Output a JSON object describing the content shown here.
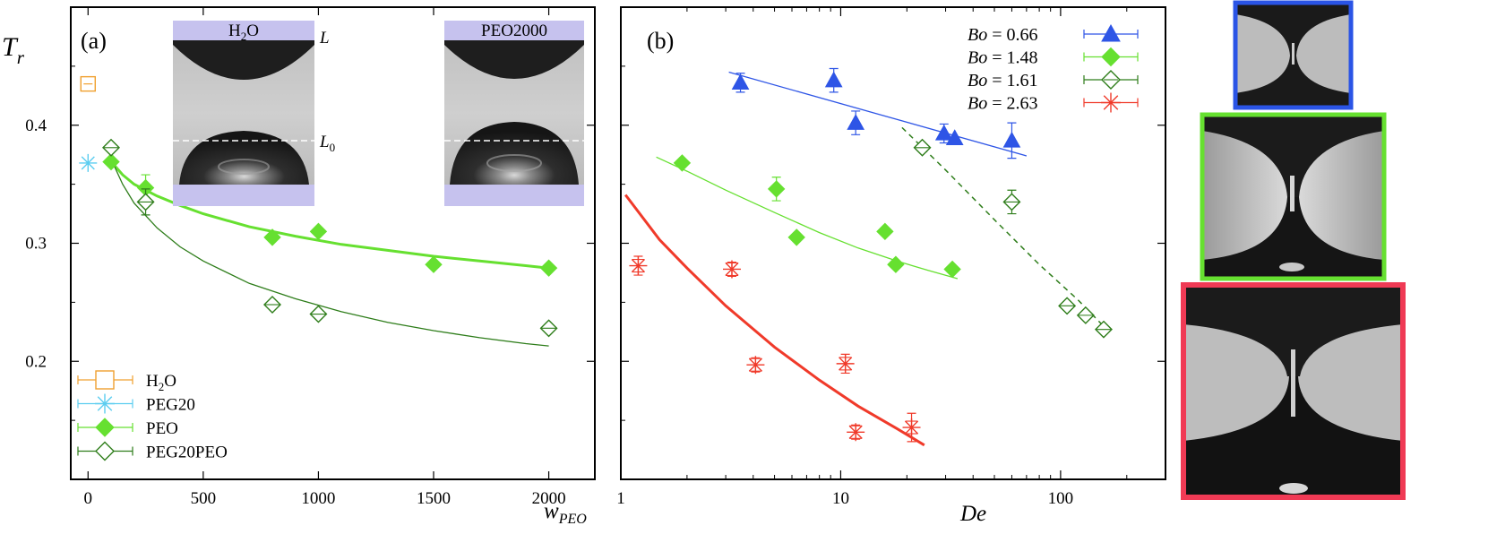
{
  "chart_data": [
    {
      "type": "scatter",
      "panel_label": "(a)",
      "ylabel": "T",
      "ylabel_sub": "r",
      "xlabel": "w",
      "xlabel_sub": "PEO",
      "xlim": [
        -75,
        2200
      ],
      "ylim": [
        0.1,
        0.5
      ],
      "xticks": [
        0,
        500,
        1000,
        1500,
        2000
      ],
      "xtick_labels": [
        "0",
        "500",
        "1000",
        "1500",
        "2000"
      ],
      "yticks": [
        0.2,
        0.3,
        0.4
      ],
      "ytick_labels": [
        "0.2",
        "0.3",
        "0.4"
      ],
      "legend_position": "bottom-left",
      "series": [
        {
          "name": "H2O",
          "label_main": "H",
          "label_sub": "2",
          "label_tail": "O",
          "color": "#f0a030",
          "marker": "open-square",
          "points": [
            {
              "x": 0,
              "y": 0.435,
              "err": 0.005
            }
          ]
        },
        {
          "name": "PEG20",
          "label_main": "PEG20",
          "color": "#5ccdf0",
          "marker": "star",
          "points": [
            {
              "x": 0,
              "y": 0.368,
              "err": 0.0
            }
          ]
        },
        {
          "name": "PEO",
          "label_main": "PEO",
          "color": "#66e030",
          "marker": "filled-diamond",
          "points": [
            {
              "x": 100,
              "y": 0.369,
              "err": 0.0
            },
            {
              "x": 250,
              "y": 0.347,
              "err": 0.011
            },
            {
              "x": 800,
              "y": 0.305,
              "err": 0.0
            },
            {
              "x": 1000,
              "y": 0.31,
              "err": 0.0
            },
            {
              "x": 1500,
              "y": 0.282,
              "err": 0.0
            },
            {
              "x": 2000,
              "y": 0.279,
              "err": 0.0
            }
          ]
        },
        {
          "name": "PEG20PEO",
          "label_main": "PEG20PEO",
          "color": "#2e7d1a",
          "marker": "open-diamond",
          "points": [
            {
              "x": 100,
              "y": 0.381,
              "err": 0.0
            },
            {
              "x": 250,
              "y": 0.335,
              "err": 0.011
            },
            {
              "x": 800,
              "y": 0.248,
              "err": 0.0
            },
            {
              "x": 1000,
              "y": 0.24,
              "err": 0.0
            },
            {
              "x": 2000,
              "y": 0.228,
              "err": 0.0
            }
          ]
        }
      ],
      "fits": [
        {
          "name": "PEO fit",
          "color": "#66e030",
          "width": 3,
          "dash": false,
          "points": [
            [
              110,
              0.367
            ],
            [
              150,
              0.358
            ],
            [
              200,
              0.35
            ],
            [
              300,
              0.34
            ],
            [
              400,
              0.332
            ],
            [
              500,
              0.325
            ],
            [
              700,
              0.314
            ],
            [
              900,
              0.306
            ],
            [
              1100,
              0.299
            ],
            [
              1300,
              0.294
            ],
            [
              1500,
              0.289
            ],
            [
              1700,
              0.285
            ],
            [
              1900,
              0.281
            ],
            [
              2000,
              0.279
            ]
          ]
        },
        {
          "name": "PEG20PEO fit",
          "color": "#2e7d1a",
          "width": 1.3,
          "dash": false,
          "points": [
            [
              110,
              0.367
            ],
            [
              150,
              0.35
            ],
            [
              200,
              0.334
            ],
            [
              300,
              0.313
            ],
            [
              400,
              0.297
            ],
            [
              500,
              0.285
            ],
            [
              700,
              0.266
            ],
            [
              900,
              0.253
            ],
            [
              1100,
              0.242
            ],
            [
              1300,
              0.233
            ],
            [
              1500,
              0.226
            ],
            [
              1700,
              0.22
            ],
            [
              1900,
              0.215
            ],
            [
              2000,
              0.213
            ]
          ]
        }
      ],
      "insets": [
        {
          "label_main": "H",
          "label_sub": "2",
          "label_tail": "O",
          "annotation_top": "L",
          "annotation_mid": "L",
          "annotation_mid_sub": "0"
        },
        {
          "label_main": "PEO2000"
        }
      ]
    },
    {
      "type": "scatter",
      "panel_label": "(b)",
      "xlabel": "De",
      "xscale": "log",
      "xlim": [
        1,
        300
      ],
      "ylim": [
        0.1,
        0.5
      ],
      "xticks": [
        1,
        10,
        100
      ],
      "xtick_labels": [
        "1",
        "10",
        "100"
      ],
      "yticks": [
        0.2,
        0.3,
        0.4
      ],
      "legend_position": "top-right",
      "legend_prefix": "Bo = ",
      "series": [
        {
          "name": "Bo = 0.66",
          "bo": "0.66",
          "color": "#2e55e6",
          "marker": "filled-triangle",
          "points": [
            {
              "x": 3.5,
              "y": 0.436,
              "err": 0.008
            },
            {
              "x": 9.3,
              "y": 0.438,
              "err": 0.01
            },
            {
              "x": 11.7,
              "y": 0.402,
              "err": 0.01
            },
            {
              "x": 29.5,
              "y": 0.393,
              "err": 0.008
            },
            {
              "x": 33,
              "y": 0.389,
              "err": 0.0
            },
            {
              "x": 60,
              "y": 0.387,
              "err": 0.015
            }
          ]
        },
        {
          "name": "Bo = 1.48",
          "bo": "1.48",
          "color": "#66e030",
          "marker": "filled-diamond",
          "points": [
            {
              "x": 1.9,
              "y": 0.368,
              "err": 0.0
            },
            {
              "x": 5.1,
              "y": 0.346,
              "err": 0.01
            },
            {
              "x": 6.3,
              "y": 0.305,
              "err": 0.0
            },
            {
              "x": 15.9,
              "y": 0.31,
              "err": 0.0
            },
            {
              "x": 17.8,
              "y": 0.282,
              "err": 0.0
            },
            {
              "x": 32.2,
              "y": 0.278,
              "err": 0.0
            }
          ]
        },
        {
          "name": "Bo = 1.61",
          "bo": "1.61",
          "color": "#2e7d1a",
          "marker": "open-diamond",
          "points": [
            {
              "x": 23.5,
              "y": 0.381,
              "err": 0.0
            },
            {
              "x": 60,
              "y": 0.335,
              "err": 0.01
            },
            {
              "x": 107,
              "y": 0.247,
              "err": 0.0
            },
            {
              "x": 130,
              "y": 0.239,
              "err": 0.0
            },
            {
              "x": 157,
              "y": 0.227,
              "err": 0.0
            }
          ]
        },
        {
          "name": "Bo = 2.63",
          "bo": "2.63",
          "color": "#f03a2a",
          "marker": "star",
          "points": [
            {
              "x": 1.2,
              "y": 0.281,
              "err": 0.008
            },
            {
              "x": 3.2,
              "y": 0.278,
              "err": 0.006
            },
            {
              "x": 4.1,
              "y": 0.197,
              "err": 0.006
            },
            {
              "x": 10.5,
              "y": 0.198,
              "err": 0.008
            },
            {
              "x": 11.7,
              "y": 0.14,
              "err": 0.006
            },
            {
              "x": 21,
              "y": 0.144,
              "err": 0.012
            }
          ]
        }
      ],
      "fits": [
        {
          "name": "Bo 0.66 fit",
          "color": "#2e55e6",
          "width": 1.3,
          "dash": false,
          "points": [
            [
              3.1,
              0.445
            ],
            [
              70,
              0.374
            ]
          ]
        },
        {
          "name": "Bo 1.48 fit",
          "color": "#66e030",
          "width": 1.3,
          "dash": false,
          "points": [
            [
              1.45,
              0.373
            ],
            [
              2,
              0.361
            ],
            [
              3,
              0.345
            ],
            [
              5,
              0.326
            ],
            [
              8,
              0.309
            ],
            [
              12,
              0.296
            ],
            [
              18,
              0.285
            ],
            [
              25,
              0.277
            ],
            [
              34,
              0.27
            ]
          ]
        },
        {
          "name": "Bo 1.61 fit",
          "color": "#2e7d1a",
          "width": 1.5,
          "dash": true,
          "points": [
            [
              19,
              0.398
            ],
            [
              30,
              0.362
            ],
            [
              50,
              0.32
            ],
            [
              80,
              0.282
            ],
            [
              120,
              0.252
            ],
            [
              170,
              0.223
            ]
          ]
        },
        {
          "name": "Bo 2.63 fit",
          "color": "#f03a2a",
          "width": 3,
          "dash": false,
          "points": [
            [
              1.05,
              0.341
            ],
            [
              1.5,
              0.303
            ],
            [
              2,
              0.279
            ],
            [
              3,
              0.247
            ],
            [
              5,
              0.212
            ],
            [
              8,
              0.184
            ],
            [
              12,
              0.162
            ],
            [
              18,
              0.143
            ],
            [
              24,
              0.129
            ]
          ]
        }
      ]
    }
  ]
}
